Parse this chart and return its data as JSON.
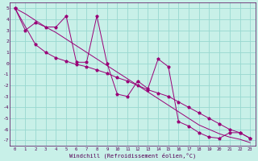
{
  "bg_color": "#c8f0e8",
  "grid_color": "#98d8d0",
  "line_color": "#990077",
  "xlabel": "Windchill (Refroidissement éolien,°C)",
  "ylim": [
    -7.5,
    5.5
  ],
  "xlim": [
    -0.5,
    23.5
  ],
  "yticks": [
    5,
    4,
    3,
    2,
    1,
    0,
    -1,
    -2,
    -3,
    -4,
    -5,
    -6,
    -7
  ],
  "xticks": [
    0,
    1,
    2,
    3,
    4,
    5,
    6,
    7,
    8,
    9,
    10,
    11,
    12,
    13,
    14,
    15,
    16,
    17,
    18,
    19,
    20,
    21,
    22,
    23
  ],
  "line1_x": [
    0,
    1,
    2,
    3,
    4,
    5,
    6,
    7,
    8,
    9,
    10,
    11,
    12,
    13,
    14,
    15,
    16,
    17,
    18,
    19,
    20,
    21,
    22,
    23
  ],
  "line1_y": [
    5.0,
    3.0,
    3.7,
    3.3,
    3.3,
    4.3,
    0.1,
    0.1,
    4.3,
    0.0,
    -2.8,
    -3.0,
    -1.6,
    -2.3,
    0.4,
    -0.3,
    -5.3,
    -5.7,
    -6.3,
    -6.7,
    -6.8,
    -6.3,
    -6.3,
    -6.8
  ],
  "line2_x": [
    0,
    2,
    3,
    4,
    5,
    6,
    7,
    8,
    9,
    10,
    11,
    12,
    13,
    14,
    15,
    16,
    17,
    18,
    19,
    20,
    21,
    22,
    23
  ],
  "line2_y": [
    5.0,
    1.7,
    1.0,
    0.5,
    0.2,
    -0.1,
    -0.3,
    -0.6,
    -0.9,
    -1.3,
    -1.6,
    -2.0,
    -2.4,
    -2.7,
    -3.0,
    -3.5,
    -4.0,
    -4.5,
    -5.0,
    -5.5,
    -6.0,
    -6.3,
    -6.8
  ],
  "line3_x": [
    0,
    1,
    2,
    3,
    4,
    5,
    6,
    7,
    8,
    9,
    10,
    11,
    12,
    13,
    14,
    15,
    16,
    17,
    18,
    19,
    20,
    21,
    22,
    23
  ],
  "line3_y": [
    5.0,
    4.5,
    3.9,
    3.3,
    2.8,
    2.2,
    1.6,
    1.0,
    0.4,
    -0.2,
    -0.8,
    -1.4,
    -2.0,
    -2.6,
    -3.2,
    -3.8,
    -4.4,
    -5.0,
    -5.6,
    -6.0,
    -6.4,
    -6.7,
    -6.9,
    -7.2
  ]
}
